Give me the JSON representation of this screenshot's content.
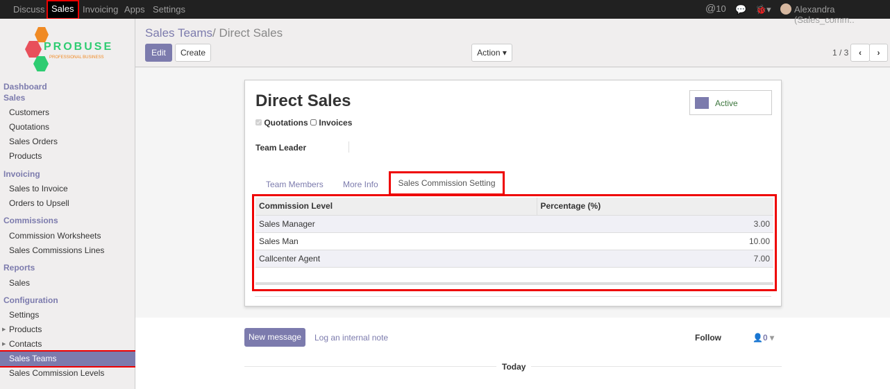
{
  "topbar": {
    "menus": [
      "Discuss",
      "Sales",
      "Invoicing",
      "Apps",
      "Settings"
    ],
    "active": "Sales",
    "mentions": "10",
    "user": "Alexandra (Sales_comm.."
  },
  "logo": {
    "text": "PROBUSE",
    "tagline": "PROFESSIONAL BUSINESS"
  },
  "sidebar": [
    {
      "type": "h",
      "label": "Dashboard"
    },
    {
      "type": "h",
      "label": "Sales"
    },
    {
      "type": "i",
      "label": "Customers"
    },
    {
      "type": "i",
      "label": "Quotations"
    },
    {
      "type": "i",
      "label": "Sales Orders"
    },
    {
      "type": "i",
      "label": "Products"
    },
    {
      "type": "h",
      "label": "Invoicing"
    },
    {
      "type": "i",
      "label": "Sales to Invoice"
    },
    {
      "type": "i",
      "label": "Orders to Upsell"
    },
    {
      "type": "h",
      "label": "Commissions"
    },
    {
      "type": "i",
      "label": "Commission Worksheets"
    },
    {
      "type": "i",
      "label": "Sales Commissions Lines"
    },
    {
      "type": "h",
      "label": "Reports"
    },
    {
      "type": "i",
      "label": "Sales"
    },
    {
      "type": "h",
      "label": "Configuration"
    },
    {
      "type": "i",
      "label": "Settings"
    },
    {
      "type": "i",
      "label": "Products"
    },
    {
      "type": "i",
      "label": "Contacts"
    },
    {
      "type": "i",
      "label": "Sales Teams"
    },
    {
      "type": "i",
      "label": "Sales Commission Levels"
    }
  ],
  "breadcrumb": {
    "parent": "Sales Teams",
    "sep": "/",
    "current": "Direct Sales"
  },
  "buttons": {
    "edit": "Edit",
    "create": "Create",
    "action": "Action",
    "pager": "1 / 3"
  },
  "form": {
    "title": "Direct Sales",
    "active": "Active",
    "quotations": "Quotations",
    "quotations_checked": true,
    "invoices": "Invoices",
    "invoices_checked": false,
    "team_leader_label": "Team Leader",
    "tabs": [
      "Team Members",
      "More Info",
      "Sales Commission Setting"
    ],
    "active_tab": "Sales Commission Setting",
    "table": {
      "headers": [
        "Commission Level",
        "Percentage (%)"
      ],
      "rows": [
        [
          "Sales Manager",
          "3.00"
        ],
        [
          "Sales Man",
          "10.00"
        ],
        [
          "Callcenter Agent",
          "7.00"
        ]
      ]
    }
  },
  "chatter": {
    "new_message": "New message",
    "log_note": "Log an internal note",
    "follow": "Follow",
    "followers": "0",
    "today": "Today"
  },
  "colors": {
    "accent": "#7c7bad",
    "highlight": "#ee0000"
  }
}
